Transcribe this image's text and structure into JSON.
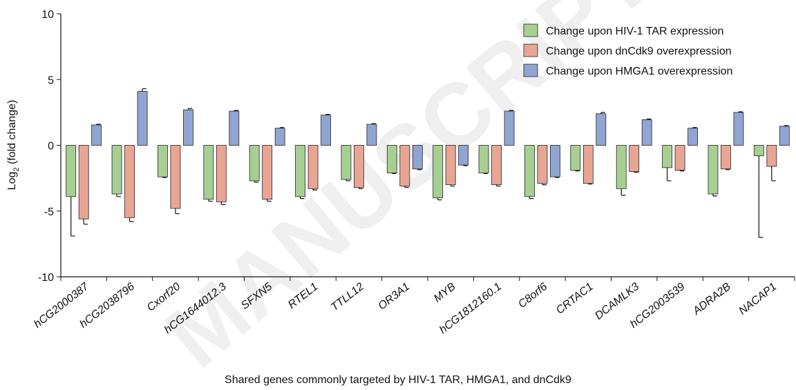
{
  "chart_data": {
    "type": "bar",
    "y_label": {
      "base": "Log",
      "subscript": "2",
      "rest": " (fold change)"
    },
    "x_label": "Shared genes commonly targeted by HIV-1 TAR, HMGA1, and dnCdk9",
    "watermark": "MANUSCRIPT",
    "categories": [
      "hCG2000387",
      "hCG2038796",
      "Cxorf20",
      "hCG1644012.3",
      "SFXN5",
      "RTEL1",
      "TTLL12",
      "OR3A1",
      "MYB",
      "hCG1812160.1",
      "C8orf6",
      "CRTAC1",
      "DCAMLK3",
      "hCG2003539",
      "ADRA2B",
      "NACAP1"
    ],
    "series": [
      {
        "name": "Change upon HIV-1 TAR expression",
        "color": "#a8cf92",
        "values": [
          -3.9,
          -3.7,
          -2.4,
          -4.1,
          -2.7,
          -3.9,
          -2.6,
          -2.1,
          -4.0,
          -2.1,
          -3.9,
          -1.9,
          -3.3,
          -1.7,
          -3.7,
          -0.8
        ],
        "errors": [
          3.0,
          0.2,
          0.05,
          0.15,
          0.1,
          0.15,
          0.1,
          0.05,
          0.15,
          0.05,
          0.15,
          0.05,
          0.5,
          1.0,
          0.15,
          6.2
        ]
      },
      {
        "name": "Change upon dnCdk9 overexpression",
        "color": "#e9a593",
        "values": [
          -5.6,
          -5.5,
          -4.8,
          -4.3,
          -4.1,
          -3.3,
          -3.2,
          -3.1,
          -3.0,
          -3.0,
          -2.9,
          -2.9,
          -2.0,
          -1.9,
          -1.8,
          -1.6
        ],
        "errors": [
          0.4,
          0.3,
          0.4,
          0.2,
          0.15,
          0.1,
          0.1,
          0.1,
          0.1,
          0.1,
          0.1,
          0.05,
          0.05,
          0.05,
          0.05,
          1.1
        ]
      },
      {
        "name": "Change upon HMGA1 overexpression",
        "color": "#91a5d3",
        "values": [
          1.55,
          4.1,
          2.7,
          2.6,
          1.3,
          2.3,
          1.6,
          -1.8,
          -1.5,
          2.6,
          -2.4,
          2.4,
          1.95,
          1.3,
          2.5,
          1.45
        ],
        "errors": [
          0.05,
          0.2,
          0.1,
          0.05,
          0.05,
          0.05,
          0.05,
          0.05,
          0.05,
          0.05,
          0.05,
          0.1,
          0.05,
          0.05,
          0.05,
          0.05
        ]
      }
    ],
    "ylim": [
      -10,
      10
    ],
    "yticks": [
      -10,
      -5,
      0,
      5,
      10
    ],
    "grid": false,
    "legend": "upper right"
  }
}
